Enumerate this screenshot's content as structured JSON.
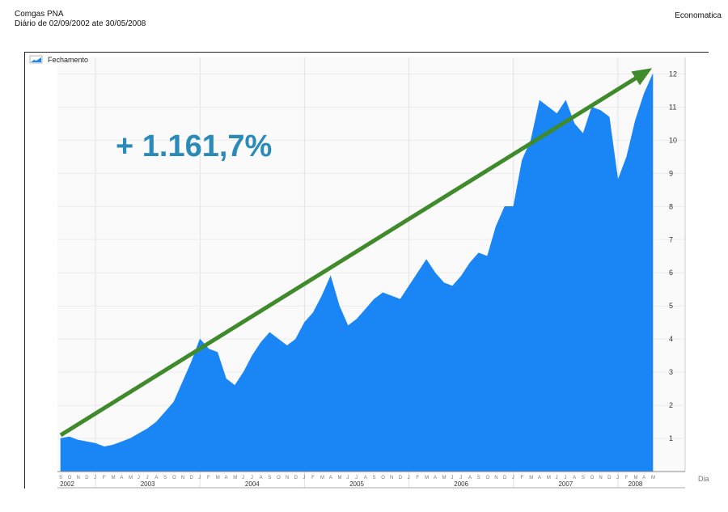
{
  "header": {
    "title": "Comgas PNA",
    "subtitle": "Diário de 02/09/2002 ate 30/05/2008",
    "source": "Economatica"
  },
  "annotation": {
    "text": "+ 1.161,7%"
  },
  "chart_data": {
    "type": "area",
    "legend": [
      "Fechamento"
    ],
    "legend_position": "top-left",
    "x_axis_label": "Dia",
    "y_ticks": [
      1,
      2,
      3,
      4,
      5,
      6,
      7,
      8,
      9,
      10,
      11,
      12
    ],
    "ylim": [
      0,
      12.5
    ],
    "years": [
      "2002",
      "2003",
      "2004",
      "2005",
      "2006",
      "2007",
      "2008"
    ],
    "month_ticks": [
      "S",
      "O",
      "N",
      "D",
      "J",
      "F",
      "M",
      "A",
      "M",
      "J",
      "J",
      "A",
      "S",
      "O",
      "N",
      "D",
      "J",
      "F",
      "M",
      "A",
      "M",
      "J",
      "J",
      "A",
      "S",
      "O",
      "N",
      "D",
      "J",
      "F",
      "M",
      "A",
      "M",
      "J",
      "J",
      "A",
      "S",
      "O",
      "N",
      "D",
      "J",
      "F",
      "M",
      "A",
      "M",
      "J",
      "J",
      "A",
      "S",
      "O",
      "N",
      "D",
      "J",
      "F",
      "M",
      "A",
      "M",
      "J",
      "J",
      "A",
      "S",
      "O",
      "N",
      "D",
      "J",
      "F",
      "M",
      "A",
      "M"
    ],
    "series": [
      {
        "name": "Fechamento",
        "color": "#1a86f5",
        "x": [
          "2002-09",
          "2002-10",
          "2002-11",
          "2002-12",
          "2003-01",
          "2003-02",
          "2003-03",
          "2003-04",
          "2003-05",
          "2003-06",
          "2003-07",
          "2003-08",
          "2003-09",
          "2003-10",
          "2003-11",
          "2003-12",
          "2004-01",
          "2004-02",
          "2004-03",
          "2004-04",
          "2004-05",
          "2004-06",
          "2004-07",
          "2004-08",
          "2004-09",
          "2004-10",
          "2004-11",
          "2004-12",
          "2005-01",
          "2005-02",
          "2005-03",
          "2005-04",
          "2005-05",
          "2005-06",
          "2005-07",
          "2005-08",
          "2005-09",
          "2005-10",
          "2005-11",
          "2005-12",
          "2006-01",
          "2006-02",
          "2006-03",
          "2006-04",
          "2006-05",
          "2006-06",
          "2006-07",
          "2006-08",
          "2006-09",
          "2006-10",
          "2006-11",
          "2006-12",
          "2007-01",
          "2007-02",
          "2007-03",
          "2007-04",
          "2007-05",
          "2007-06",
          "2007-07",
          "2007-08",
          "2007-09",
          "2007-10",
          "2007-11",
          "2007-12",
          "2008-01",
          "2008-02",
          "2008-03",
          "2008-04",
          "2008-05"
        ],
        "values": [
          1.0,
          1.05,
          0.95,
          0.9,
          0.85,
          0.75,
          0.8,
          0.9,
          1.0,
          1.15,
          1.3,
          1.5,
          1.8,
          2.1,
          2.7,
          3.3,
          4.0,
          3.7,
          3.6,
          2.8,
          2.6,
          3.0,
          3.5,
          3.9,
          4.2,
          4.0,
          3.8,
          4.0,
          4.5,
          4.8,
          5.3,
          5.9,
          5.0,
          4.4,
          4.6,
          4.9,
          5.2,
          5.4,
          5.3,
          5.2,
          5.6,
          6.0,
          6.4,
          6.0,
          5.7,
          5.6,
          5.9,
          6.3,
          6.6,
          6.5,
          7.4,
          8.0,
          8.0,
          9.4,
          10.0,
          11.2,
          11.0,
          10.8,
          11.2,
          10.5,
          10.2,
          11.0,
          10.9,
          10.7,
          8.8,
          9.5,
          10.6,
          11.4,
          12.0
        ]
      }
    ],
    "trend_arrow_color": "#3f8a2a"
  }
}
